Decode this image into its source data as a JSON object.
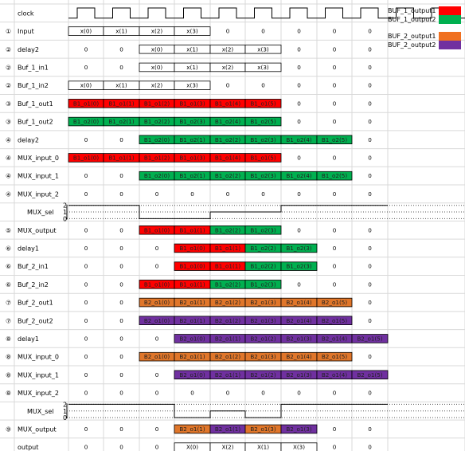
{
  "legend": [
    {
      "label": "BUF_1_output1",
      "color": "#ff0000"
    },
    {
      "label": "BUF_1_output2",
      "color": "#00b050"
    },
    {
      "label": "BUF_2_output1",
      "color": "#f07020"
    },
    {
      "label": "BUF_2_output2",
      "color": "#7030a0"
    }
  ],
  "colors": {
    "R": "#ff0000",
    "G": "#00b050",
    "O": "#e0762a",
    "P": "#7030a0",
    "W": "#ffffff"
  },
  "rows": [
    {
      "num": "",
      "label": "clock",
      "type": "clock"
    },
    {
      "num": "①",
      "label": "Input",
      "cells": [
        [
          "x(0)",
          "W"
        ],
        [
          "x(1)",
          "W"
        ],
        [
          "x(2)",
          "W"
        ],
        [
          "x(3)",
          "W"
        ],
        [
          "0",
          ""
        ],
        [
          "0",
          ""
        ],
        [
          "0",
          ""
        ],
        [
          "0",
          ""
        ],
        [
          "0",
          ""
        ]
      ]
    },
    {
      "num": "②",
      "label": "delay2",
      "cells": [
        [
          "0",
          ""
        ],
        [
          "0",
          ""
        ],
        [
          "x(0)",
          "W"
        ],
        [
          "x(1)",
          "W"
        ],
        [
          "x(2)",
          "W"
        ],
        [
          "x(3)",
          "W"
        ],
        [
          "0",
          ""
        ],
        [
          "0",
          ""
        ],
        [
          "0",
          ""
        ]
      ]
    },
    {
      "num": "②",
      "label": "Buf_1_in1",
      "cells": [
        [
          "0",
          ""
        ],
        [
          "0",
          ""
        ],
        [
          "x(0)",
          "W"
        ],
        [
          "x(1)",
          "W"
        ],
        [
          "x(2)",
          "W"
        ],
        [
          "x(3)",
          "W"
        ],
        [
          "0",
          ""
        ],
        [
          "0",
          ""
        ],
        [
          "0",
          ""
        ]
      ]
    },
    {
      "num": "②",
      "label": "Buf_1_in2",
      "cells": [
        [
          "x(0)",
          "W"
        ],
        [
          "x(1)",
          "W"
        ],
        [
          "x(2)",
          "W"
        ],
        [
          "x(3)",
          "W"
        ],
        [
          "0",
          ""
        ],
        [
          "0",
          ""
        ],
        [
          "0",
          ""
        ],
        [
          "0",
          ""
        ],
        [
          "0",
          ""
        ]
      ]
    },
    {
      "num": "③",
      "label": "Buf_1_out1",
      "color": "#ff0000",
      "cells": [
        [
          "B1_o1(0)",
          "R"
        ],
        [
          "B1_o1(1)",
          "R"
        ],
        [
          "B1_o1(2)",
          "R"
        ],
        [
          "B1_o1(3)",
          "R"
        ],
        [
          "B1_o1(4)",
          "R"
        ],
        [
          "B1_o1(5)",
          "R"
        ],
        [
          "0",
          ""
        ],
        [
          "0",
          ""
        ],
        [
          "0",
          ""
        ]
      ]
    },
    {
      "num": "③",
      "label": "Buf_1_out2",
      "color": "#00b050",
      "cells": [
        [
          "B1_o2(0)",
          "G"
        ],
        [
          "B1_o2(1)",
          "G"
        ],
        [
          "B1_o2(2)",
          "G"
        ],
        [
          "B1_o2(3)",
          "G"
        ],
        [
          "B1_o2(4)",
          "G"
        ],
        [
          "B1_o2(5)",
          "G"
        ],
        [
          "0",
          ""
        ],
        [
          "0",
          ""
        ],
        [
          "0",
          ""
        ]
      ]
    },
    {
      "num": "④",
      "label": "delay2",
      "cells": [
        [
          "0",
          ""
        ],
        [
          "0",
          ""
        ],
        [
          "B1_o2(0)",
          "G"
        ],
        [
          "B1_o2(1)",
          "G"
        ],
        [
          "B1_o2(2)",
          "G"
        ],
        [
          "B1_o2(3)",
          "G"
        ],
        [
          "B1_o2(4)",
          "G"
        ],
        [
          "B1_o2(5)",
          "G"
        ],
        [
          "0",
          ""
        ]
      ]
    },
    {
      "num": "④",
      "label": "MUX_input_0",
      "cells": [
        [
          "B1_o1(0)",
          "R"
        ],
        [
          "B1_o1(1)",
          "R"
        ],
        [
          "B1_o1(2)",
          "R"
        ],
        [
          "B1_o1(3)",
          "R"
        ],
        [
          "B1_o1(4)",
          "R"
        ],
        [
          "B1_o1(5)",
          "R"
        ],
        [
          "0",
          ""
        ],
        [
          "0",
          ""
        ],
        [
          "0",
          ""
        ]
      ]
    },
    {
      "num": "④",
      "label": "MUX_input_1",
      "cells": [
        [
          "0",
          ""
        ],
        [
          "0",
          ""
        ],
        [
          "B1_o2(0)",
          "G"
        ],
        [
          "B1_o2(1)",
          "G"
        ],
        [
          "B1_o2(2)",
          "G"
        ],
        [
          "B1_o2(3)",
          "G"
        ],
        [
          "B1_o2(4)",
          "G"
        ],
        [
          "B1_o2(5)",
          "G"
        ],
        [
          "0",
          ""
        ]
      ]
    },
    {
      "num": "④",
      "label": "MUX_input_2",
      "cells": [
        [
          "0",
          ""
        ],
        [
          "0",
          ""
        ],
        [
          "0",
          ""
        ],
        [
          "0",
          ""
        ],
        [
          "0",
          ""
        ],
        [
          "0",
          ""
        ],
        [
          "0",
          ""
        ],
        [
          "0",
          ""
        ],
        [
          "0",
          ""
        ]
      ]
    },
    {
      "num": "",
      "label": "MUX_sel",
      "type": "sel",
      "ticks": [
        "2",
        "1",
        "0"
      ],
      "levels": [
        2,
        2,
        0,
        0,
        1,
        1,
        2,
        2,
        2
      ],
      "dotted_from": 6
    },
    {
      "num": "⑤",
      "label": "MUX_output",
      "cells": [
        [
          "0",
          ""
        ],
        [
          "0",
          ""
        ],
        [
          "B1_o1(0)",
          "R"
        ],
        [
          "B1_o1(1)",
          "R"
        ],
        [
          "B1_o2(2)",
          "G"
        ],
        [
          "B1_o2(3)",
          "G"
        ],
        [
          "0",
          ""
        ],
        [
          "0",
          ""
        ],
        [
          "0",
          ""
        ]
      ]
    },
    {
      "num": "⑥",
      "label": "delay1",
      "cells": [
        [
          "0",
          ""
        ],
        [
          "0",
          ""
        ],
        [
          "0",
          ""
        ],
        [
          "B1_o1(0)",
          "R"
        ],
        [
          "B1_o1(1)",
          "R"
        ],
        [
          "B1_o2(2)",
          "G"
        ],
        [
          "B1_o2(3)",
          "G"
        ],
        [
          "0",
          ""
        ],
        [
          "0",
          ""
        ]
      ]
    },
    {
      "num": "⑥",
      "label": "Buf_2_in1",
      "cells": [
        [
          "0",
          ""
        ],
        [
          "0",
          ""
        ],
        [
          "0",
          ""
        ],
        [
          "B1_o1(0)",
          "R"
        ],
        [
          "B1_o1(1)",
          "R"
        ],
        [
          "B1_o2(2)",
          "G"
        ],
        [
          "B1_o2(3)",
          "G"
        ],
        [
          "0",
          ""
        ],
        [
          "0",
          ""
        ]
      ]
    },
    {
      "num": "⑥",
      "label": "Buf_2_in2",
      "cells": [
        [
          "0",
          ""
        ],
        [
          "0",
          ""
        ],
        [
          "B1_o1(0)",
          "R"
        ],
        [
          "B1_o1(1)",
          "R"
        ],
        [
          "B1_o2(2)",
          "G"
        ],
        [
          "B1_o2(3)",
          "G"
        ],
        [
          "0",
          ""
        ],
        [
          "0",
          ""
        ],
        [
          "0",
          ""
        ]
      ]
    },
    {
      "num": "⑦",
      "label": "Buf_2_out1",
      "color": "#e0762a",
      "cells": [
        [
          "0",
          ""
        ],
        [
          "0",
          ""
        ],
        [
          "B2_o1(0)",
          "O"
        ],
        [
          "B2_o1(1)",
          "O"
        ],
        [
          "B2_o1(2)",
          "O"
        ],
        [
          "B2_o1(3)",
          "O"
        ],
        [
          "B2_o1(4)",
          "O"
        ],
        [
          "B2_o1(5)",
          "O"
        ],
        [
          "0",
          ""
        ]
      ]
    },
    {
      "num": "⑦",
      "label": "Buf_2_out2",
      "color": "#7030a0",
      "cells": [
        [
          "0",
          ""
        ],
        [
          "0",
          ""
        ],
        [
          "B2_o1(0)",
          "P"
        ],
        [
          "B2_o1(1)",
          "P"
        ],
        [
          "B2_o1(2)",
          "P"
        ],
        [
          "B2_o1(3)",
          "P"
        ],
        [
          "B2_o1(4)",
          "P"
        ],
        [
          "B2_o1(5)",
          "P"
        ],
        [
          "0",
          ""
        ]
      ]
    },
    {
      "num": "⑧",
      "label": "delay1",
      "cells": [
        [
          "0",
          ""
        ],
        [
          "0",
          ""
        ],
        [
          "0",
          ""
        ],
        [
          "B2_o1(0)",
          "P"
        ],
        [
          "B2_o1(1)",
          "P"
        ],
        [
          "B2_o1(2)",
          "P"
        ],
        [
          "B2_o1(3)",
          "P"
        ],
        [
          "B2_o1(4)",
          "P"
        ],
        [
          "B2_o1(5)",
          "P"
        ]
      ]
    },
    {
      "num": "⑧",
      "label": "MUX_input_0",
      "cells": [
        [
          "0",
          ""
        ],
        [
          "0",
          ""
        ],
        [
          "B2_o1(0)",
          "O"
        ],
        [
          "B2_o1(1)",
          "O"
        ],
        [
          "B2_o1(2)",
          "O"
        ],
        [
          "B2_o1(3)",
          "O"
        ],
        [
          "B2_o1(4)",
          "O"
        ],
        [
          "B2_o1(5)",
          "O"
        ],
        [
          "0",
          ""
        ]
      ]
    },
    {
      "num": "⑧",
      "label": "MUX_input_1",
      "cells": [
        [
          "0",
          ""
        ],
        [
          "0",
          ""
        ],
        [
          "0",
          ""
        ],
        [
          "B2_o1(0)",
          "P"
        ],
        [
          "B2_o1(1)",
          "P"
        ],
        [
          "B2_o1(2)",
          "P"
        ],
        [
          "B2_o1(3)",
          "P"
        ],
        [
          "B2_o1(4)",
          "P"
        ],
        [
          "B2_o1(5)",
          "P"
        ]
      ]
    },
    {
      "num": "⑧",
      "label": "MUX_input_2",
      "cells": [
        [
          "0",
          ""
        ],
        [
          "0",
          ""
        ],
        [
          "0",
          ""
        ],
        [
          "0",
          ""
        ],
        [
          "0",
          ""
        ],
        [
          "0",
          ""
        ],
        [
          "0",
          ""
        ],
        [
          "0",
          ""
        ],
        [
          "0",
          ""
        ]
      ]
    },
    {
      "num": "",
      "label": "MUX_sel",
      "type": "sel",
      "ticks": [
        "2",
        "1",
        "0"
      ],
      "levels": [
        2,
        2,
        2,
        0,
        1,
        0,
        2,
        2,
        2
      ],
      "dotted_from": null
    },
    {
      "num": "⑨",
      "label": "MUX_output",
      "cells": [
        [
          "0",
          ""
        ],
        [
          "0",
          ""
        ],
        [
          "0",
          ""
        ],
        [
          "B2_o1(1)",
          "O"
        ],
        [
          "B2_o1(1)",
          "P"
        ],
        [
          "B2_o1(3)",
          "O"
        ],
        [
          "B2_o1(3)",
          "P"
        ],
        [
          "0",
          ""
        ],
        [
          "0",
          ""
        ]
      ]
    },
    {
      "num": "",
      "label": "output",
      "cells": [
        [
          "0",
          ""
        ],
        [
          "0",
          ""
        ],
        [
          "0",
          ""
        ],
        [
          "X(0)",
          "W"
        ],
        [
          "X(2)",
          "W"
        ],
        [
          "X(1)",
          "W"
        ],
        [
          "X(3)",
          "W"
        ],
        [
          "0",
          ""
        ],
        [
          "0",
          ""
        ]
      ]
    }
  ]
}
